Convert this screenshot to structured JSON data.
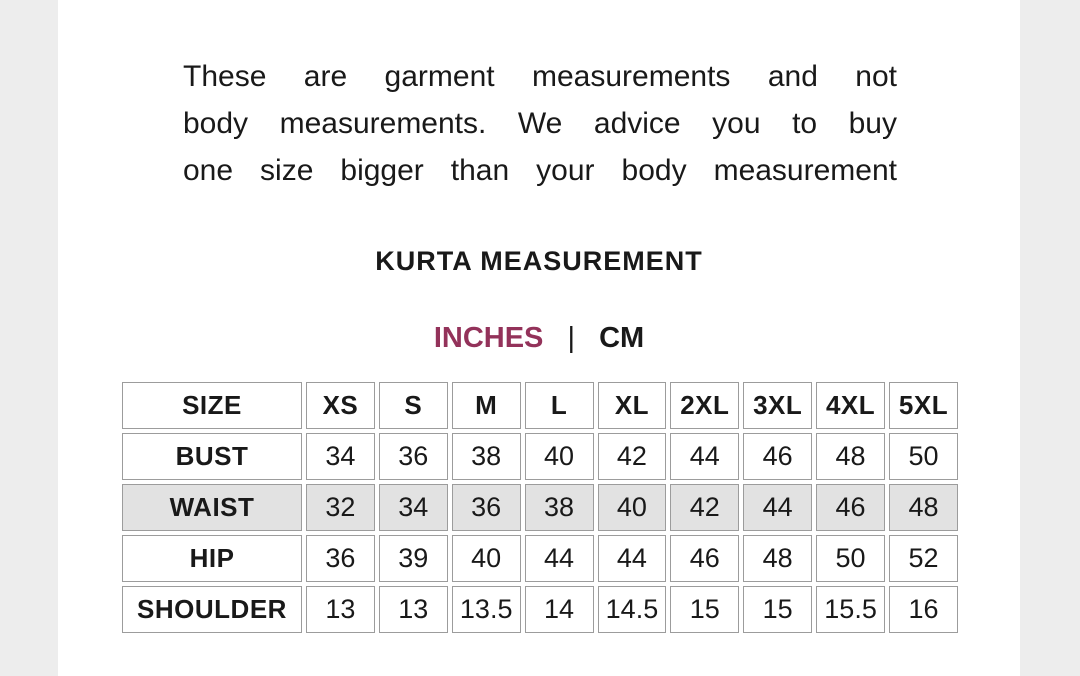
{
  "colors": {
    "accent": "#93325a",
    "text": "#191919",
    "table_border": "#9c9c9c",
    "row_highlight": "#e2e2e2",
    "canvas_bg": "#ffffff",
    "page_bg": "#ededed"
  },
  "note": {
    "lines": [
      "These are garment measurements and not",
      "body measurements. We advice you to buy",
      "one size bigger than your body measurement"
    ]
  },
  "heading": {
    "title": "KURTA MEASUREMENT"
  },
  "units": {
    "primary": "INCHES",
    "separator": "|",
    "secondary": "CM"
  },
  "size_chart": {
    "header": [
      "SIZE",
      "XS",
      "S",
      "M",
      "L",
      "XL",
      "2XL",
      "3XL",
      "4XL",
      "5XL"
    ],
    "rows": [
      {
        "label": "BUST",
        "values": [
          "34",
          "36",
          "38",
          "40",
          "42",
          "44",
          "46",
          "48",
          "50"
        ],
        "highlight": false
      },
      {
        "label": "WAIST",
        "values": [
          "32",
          "34",
          "36",
          "38",
          "40",
          "42",
          "44",
          "46",
          "48"
        ],
        "highlight": true
      },
      {
        "label": "HIP",
        "values": [
          "36",
          "39",
          "40",
          "44",
          "44",
          "46",
          "48",
          "50",
          "52"
        ],
        "highlight": false
      },
      {
        "label": "SHOULDER",
        "values": [
          "13",
          "13",
          "13.5",
          "14",
          "14.5",
          "15",
          "15",
          "15.5",
          "16"
        ],
        "highlight": false
      }
    ]
  }
}
